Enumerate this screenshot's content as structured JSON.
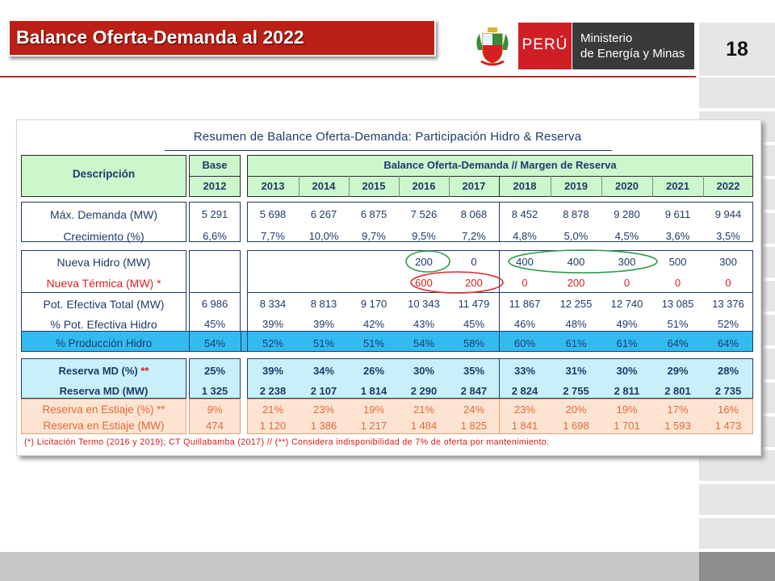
{
  "header": {
    "title": "Balance Oferta-Demanda al 2022",
    "country": "PERÚ",
    "ministry_line1": "Ministerio",
    "ministry_line2": "de Energía y Minas",
    "page_number": "18"
  },
  "table": {
    "heading": "Resumen de Balance Oferta-Demanda: Participación Hidro  &  Reserva",
    "description_header": "Descripción",
    "base_header": "Base",
    "base_year": "2012",
    "balance_header": "Balance Oferta-Demanda   //  Margen de Reserva",
    "years": [
      "2013",
      "2014",
      "2015",
      "2016",
      "2017",
      "2018",
      "2019",
      "2020",
      "2021",
      "2022"
    ],
    "rows": [
      {
        "label": "Máx. Demanda (MW)",
        "base": "5 291",
        "values": [
          "5 698",
          "6 267",
          "6 875",
          "7 526",
          "8 068",
          "8 452",
          "8 878",
          "9 280",
          "9 611",
          "9 944"
        ]
      },
      {
        "label": "Crecimiento (%)",
        "base": "6,6%",
        "values": [
          "7,7%",
          "10,0%",
          "9,7%",
          "9,5%",
          "7,2%",
          "4,8%",
          "5,0%",
          "4,5%",
          "3,6%",
          "3,5%"
        ]
      },
      {
        "label": "Nueva Hidro (MW)",
        "base": "",
        "values": [
          "",
          "",
          "",
          "200",
          "0",
          "400",
          "400",
          "300",
          "500",
          "300"
        ]
      },
      {
        "label": "Nueva Térmica (MW) *",
        "base": "",
        "values": [
          "",
          "",
          "",
          "600",
          "200",
          "0",
          "200",
          "0",
          "0",
          "0"
        ]
      },
      {
        "label": "Pot. Efectiva Total (MW)",
        "base": "6 986",
        "values": [
          "8 334",
          "8 813",
          "9 170",
          "10 343",
          "11 479",
          "11 867",
          "12 255",
          "12 740",
          "13 085",
          "13 376"
        ]
      },
      {
        "label": "% Pot. Efectiva Hidro",
        "base": "45%",
        "values": [
          "39%",
          "39%",
          "42%",
          "43%",
          "45%",
          "46%",
          "48%",
          "49%",
          "51%",
          "52%"
        ]
      },
      {
        "label": "% Producción Hidro",
        "base": "54%",
        "values": [
          "52%",
          "51%",
          "51%",
          "54%",
          "58%",
          "60%",
          "61%",
          "61%",
          "64%",
          "64%"
        ]
      },
      {
        "label": "Reserva MD (%) **",
        "base": "25%",
        "values": [
          "39%",
          "34%",
          "26%",
          "30%",
          "35%",
          "33%",
          "31%",
          "30%",
          "29%",
          "28%"
        ]
      },
      {
        "label": "Reserva MD (MW)",
        "base": "1 325",
        "values": [
          "2 238",
          "2 107",
          "1 814",
          "2 290",
          "2 847",
          "2 824",
          "2 755",
          "2 811",
          "2 801",
          "2 735"
        ]
      },
      {
        "label": "Reserva en Estiaje (%) **",
        "base": "9%",
        "values": [
          "21%",
          "23%",
          "19%",
          "21%",
          "24%",
          "23%",
          "20%",
          "19%",
          "17%",
          "16%"
        ]
      },
      {
        "label": "Reserva en Estiaje (MW)",
        "base": "474",
        "values": [
          "1 120",
          "1 386",
          "1 217",
          "1 484",
          "1 825",
          "1 841",
          "1 698",
          "1 701",
          "1 593",
          "1 473"
        ]
      }
    ],
    "footnote": "(*) Licitación Termo (2016 y 2019); CT Quillabamba (2017)  //  (**) Considera indisponibilidad de 7% de oferta por mantenimiento."
  },
  "colors": {
    "header_red": "#ba2016",
    "header_fill": "#ccf7cc",
    "blue_band": "#33bbf0",
    "reserve_fill": "#c7f0fb",
    "estiaje_fill": "#fde4d2",
    "circle_green": "#2e9e4a",
    "circle_red": "#d83030"
  },
  "icons": {
    "logo": "peru-coat-of-arms-icon"
  }
}
